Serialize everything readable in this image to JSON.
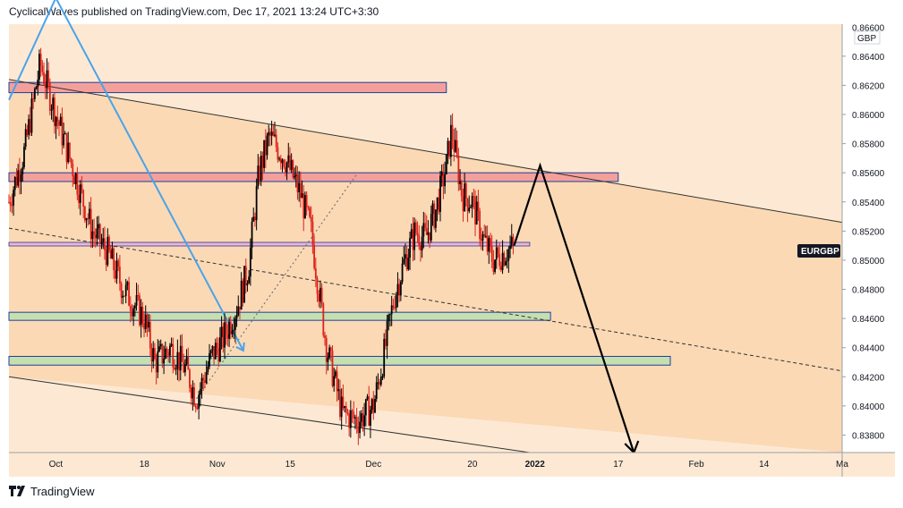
{
  "header": {
    "publish_line": "CyclicalWaves published on TradingView.com, Dec 17, 2021 13:24 UTC+3:30"
  },
  "footer": {
    "brand": "TradingView",
    "logo_icon": "tradingview-logo-icon"
  },
  "colors": {
    "bg_light": "#fde9d3",
    "bg_channel": "#fbd9b5",
    "candle_up": "#000000",
    "candle_down": "#e0201b",
    "zone_red": "#f4a09a",
    "zone_red_border": "#1c3fa0",
    "zone_green": "#c6dfae",
    "zone_green_border": "#1c3fa0",
    "zone_purple": "#e7b9d0",
    "zone_purple_border": "#5a4fa0",
    "blue_line": "#4aa3e8",
    "symbol_badge_bg": "#131722",
    "symbol_badge_text": "#ffffff"
  },
  "chart_data": {
    "type": "candlestick",
    "symbol": "EURGBP",
    "currency": "GBP",
    "ylim": [
      0.8368,
      0.8662
    ],
    "y_ticks": [
      "0.86400",
      "0.86200",
      "0.86000",
      "0.85800",
      "0.85600",
      "0.85400",
      "0.85200",
      "0.85000",
      "0.84800",
      "0.84600",
      "0.84400",
      "0.84200",
      "0.84000",
      "0.83800"
    ],
    "y_tick_values": [
      0.864,
      0.862,
      0.86,
      0.858,
      0.856,
      0.854,
      0.852,
      0.85,
      0.848,
      0.846,
      0.844,
      0.842,
      0.84,
      0.838
    ],
    "y_top_partial_label": "0.86600",
    "x_ticks": [
      {
        "label": "Oct",
        "date": "2021-10-01"
      },
      {
        "label": "18",
        "date": "2021-10-18"
      },
      {
        "label": "Nov",
        "date": "2021-11-01"
      },
      {
        "label": "15",
        "date": "2021-11-15"
      },
      {
        "label": "Dec",
        "date": "2021-12-01"
      },
      {
        "label": "20",
        "date": "2021-12-20"
      },
      {
        "label": "2022",
        "date": "2022-01-01"
      },
      {
        "label": "17",
        "date": "2022-01-17"
      },
      {
        "label": "Feb",
        "date": "2022-02-01"
      },
      {
        "label": "14",
        "date": "2022-02-14"
      },
      {
        "label": "Ma",
        "date": "2022-03-01"
      }
    ],
    "last_price_label": "EURGBP",
    "price_path": [
      [
        "2021-09-22",
        0.854
      ],
      [
        "2021-09-25",
        0.8575
      ],
      [
        "2021-09-28",
        0.8635
      ],
      [
        "2021-10-01",
        0.86
      ],
      [
        "2021-10-05",
        0.8555
      ],
      [
        "2021-10-08",
        0.852
      ],
      [
        "2021-10-11",
        0.8505
      ],
      [
        "2021-10-14",
        0.848
      ],
      [
        "2021-10-18",
        0.846
      ],
      [
        "2021-10-20",
        0.843
      ],
      [
        "2021-10-23",
        0.844
      ],
      [
        "2021-10-26",
        0.8425
      ],
      [
        "2021-10-28",
        0.8405
      ],
      [
        "2021-10-31",
        0.8435
      ],
      [
        "2021-11-02",
        0.8445
      ],
      [
        "2021-11-05",
        0.847
      ],
      [
        "2021-11-07",
        0.8495
      ],
      [
        "2021-11-09",
        0.856
      ],
      [
        "2021-11-11",
        0.8585
      ],
      [
        "2021-11-14",
        0.857
      ],
      [
        "2021-11-17",
        0.8545
      ],
      [
        "2021-11-19",
        0.852
      ],
      [
        "2021-11-22",
        0.844
      ],
      [
        "2021-11-25",
        0.8395
      ],
      [
        "2021-11-28",
        0.839
      ],
      [
        "2021-12-01",
        0.84
      ],
      [
        "2021-12-03",
        0.8435
      ],
      [
        "2021-12-05",
        0.8475
      ],
      [
        "2021-12-07",
        0.85
      ],
      [
        "2021-12-09",
        0.852
      ],
      [
        "2021-12-11",
        0.8515
      ],
      [
        "2021-12-13",
        0.8535
      ],
      [
        "2021-12-15",
        0.8565
      ],
      [
        "2021-12-16",
        0.859
      ],
      [
        "2021-12-18",
        0.8545
      ],
      [
        "2021-12-20",
        0.854
      ],
      [
        "2021-12-22",
        0.8515
      ],
      [
        "2021-12-24",
        0.85
      ],
      [
        "2021-12-26",
        0.8505
      ],
      [
        "2021-12-28",
        0.851
      ]
    ],
    "horizontal_zones": [
      {
        "kind": "resistance",
        "color": "red",
        "from": "2021-09-22",
        "to": "2021-12-15",
        "low": 0.8615,
        "high": 0.8622
      },
      {
        "kind": "resistance",
        "color": "red",
        "from": "2021-09-22",
        "to": "2022-01-17",
        "low": 0.8554,
        "high": 0.856
      },
      {
        "kind": "pivot",
        "color": "purple",
        "from": "2021-09-22",
        "to": "2021-12-31",
        "low": 0.851,
        "high": 0.8512
      },
      {
        "kind": "support",
        "color": "green",
        "from": "2021-09-22",
        "to": "2022-01-04",
        "low": 0.8459,
        "high": 0.8464
      },
      {
        "kind": "support",
        "color": "green",
        "from": "2021-09-22",
        "to": "2022-01-27",
        "low": 0.8428,
        "high": 0.8434
      }
    ],
    "channel": {
      "upper": [
        [
          "2021-09-22",
          0.8624
        ],
        [
          "2022-03-01",
          0.8526
        ]
      ],
      "lower": [
        [
          "2021-09-22",
          0.842
        ],
        [
          "2021-12-31",
          0.8368
        ]
      ],
      "midline": [
        [
          "2021-09-22",
          0.8522
        ],
        [
          "2022-03-01",
          0.8424
        ]
      ]
    },
    "projection_path": [
      [
        "2021-12-28",
        0.851
      ],
      [
        "2022-01-02",
        0.8565
      ],
      [
        "2022-01-20",
        0.8368
      ]
    ],
    "blue_path": [
      [
        "2021-09-22",
        0.861
      ],
      [
        "2021-10-01",
        0.868
      ],
      [
        "2021-11-06",
        0.8438
      ]
    ],
    "dotted_trend": [
      [
        "2021-10-28",
        0.8405
      ],
      [
        "2021-11-28",
        0.856
      ]
    ]
  }
}
